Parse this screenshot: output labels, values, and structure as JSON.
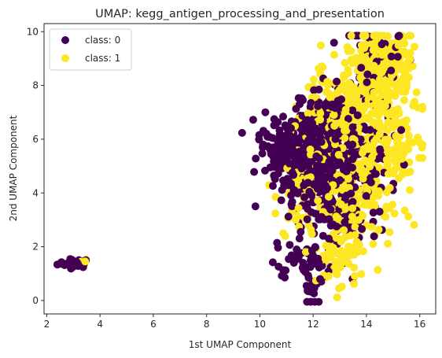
{
  "chart_data": {
    "type": "scatter",
    "title": "UMAP: kegg_antigen_processing_and_presentation",
    "xlabel": "1st UMAP Component",
    "ylabel": "2nd UMAP Component",
    "xlim": [
      1.9,
      16.6
    ],
    "ylim": [
      -0.5,
      10.3
    ],
    "x_ticks": [
      2,
      4,
      6,
      8,
      10,
      12,
      14,
      16
    ],
    "y_ticks": [
      0,
      2,
      4,
      6,
      8,
      10
    ],
    "grid": false,
    "legend_position": "top-left",
    "series": [
      {
        "name": "class: 0",
        "color": "#440154",
        "n_points": 900,
        "clusters": [
          {
            "center": [
              3.0,
              1.38
            ],
            "spread": [
              0.32,
              0.08
            ],
            "n": 40
          },
          {
            "center": [
              10.9,
              5.6
            ],
            "spread": [
              0.45,
              0.55
            ],
            "n": 150
          },
          {
            "center": [
              11.7,
              5.2
            ],
            "spread": [
              0.55,
              1.1
            ],
            "n": 220
          },
          {
            "center": [
              12.6,
              5.8
            ],
            "spread": [
              0.7,
              1.2
            ],
            "n": 200
          },
          {
            "center": [
              13.6,
              5.0
            ],
            "spread": [
              0.8,
              1.3
            ],
            "n": 120
          },
          {
            "center": [
              12.0,
              0.5
            ],
            "spread": [
              0.15,
              0.4
            ],
            "n": 25
          },
          {
            "center": [
              11.5,
              1.5
            ],
            "spread": [
              0.5,
              0.4
            ],
            "n": 45
          },
          {
            "center": [
              14.4,
              8.7
            ],
            "spread": [
              0.5,
              0.9
            ],
            "n": 60
          },
          {
            "center": [
              12.8,
              3.0
            ],
            "spread": [
              0.6,
              0.8
            ],
            "n": 40
          }
        ]
      },
      {
        "name": "class: 1",
        "color": "#fde725",
        "n_points": 900,
        "clusters": [
          {
            "center": [
              3.4,
              1.45
            ],
            "spread": [
              0.12,
              0.05
            ],
            "n": 4
          },
          {
            "center": [
              14.6,
              8.8
            ],
            "spread": [
              0.55,
              0.7
            ],
            "n": 230
          },
          {
            "center": [
              13.4,
              7.2
            ],
            "spread": [
              0.75,
              0.8
            ],
            "n": 170
          },
          {
            "center": [
              15.0,
              6.0
            ],
            "spread": [
              0.55,
              1.0
            ],
            "n": 140
          },
          {
            "center": [
              13.6,
              3.8
            ],
            "spread": [
              0.8,
              1.2
            ],
            "n": 160
          },
          {
            "center": [
              12.6,
              5.5
            ],
            "spread": [
              0.7,
              1.3
            ],
            "n": 110
          },
          {
            "center": [
              13.0,
              1.6
            ],
            "spread": [
              0.5,
              0.5
            ],
            "n": 50
          },
          {
            "center": [
              11.5,
              4.0
            ],
            "spread": [
              0.5,
              1.0
            ],
            "n": 36
          }
        ]
      }
    ]
  }
}
